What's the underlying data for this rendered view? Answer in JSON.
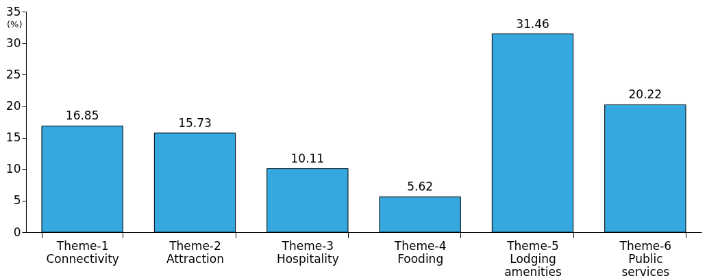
{
  "chart_data": {
    "type": "bar",
    "ylabel": "(%)",
    "categories": [
      "Theme-1 Connectivity",
      "Theme-2 Attraction",
      "Theme-3 Hospitality",
      "Theme-4 Fooding",
      "Theme-5 Lodging amenities",
      "Theme-6 Public services"
    ],
    "values": [
      16.85,
      15.73,
      10.11,
      5.62,
      31.46,
      20.22
    ],
    "color": "#35a8e0",
    "ylim": [
      0,
      35
    ],
    "yticks": [
      0,
      5,
      10,
      15,
      20,
      25,
      30,
      35
    ],
    "grid": false,
    "data_labels": true
  }
}
